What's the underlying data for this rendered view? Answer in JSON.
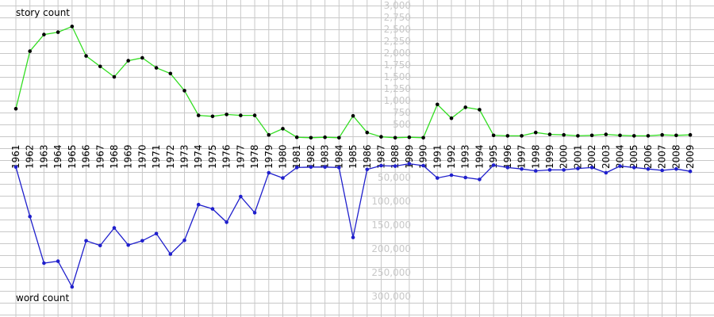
{
  "chart_data": [
    {
      "type": "line",
      "title": "",
      "ylabel": "story count",
      "ylim": [
        0,
        3250
      ],
      "yticks": [
        "3,250",
        "3,000",
        "2,750",
        "2,500",
        "2,250",
        "2,000",
        "1,750",
        "1,500",
        "1,250",
        "1,000",
        "750",
        "500"
      ],
      "x": [
        "1961",
        "1962",
        "1963",
        "1964",
        "1965",
        "1966",
        "1967",
        "1968",
        "1969",
        "1970",
        "1971",
        "1972",
        "1973",
        "1974",
        "1975",
        "1976",
        "1977",
        "1978",
        "1979",
        "1980",
        "1981",
        "1982",
        "1983",
        "1984",
        "1985",
        "1986",
        "1987",
        "1988",
        "1989",
        "1990",
        "1991",
        "1992",
        "1993",
        "1994",
        "1995",
        "1996",
        "1997",
        "1998",
        "1999",
        "2000",
        "2001",
        "2002",
        "2003",
        "2004",
        "2005",
        "2006",
        "2007",
        "2008",
        "2009"
      ],
      "values": [
        830,
        2040,
        2390,
        2440,
        2560,
        1940,
        1720,
        1500,
        1840,
        1900,
        1690,
        1570,
        1210,
        690,
        670,
        710,
        690,
        690,
        280,
        410,
        230,
        220,
        230,
        220,
        680,
        330,
        240,
        220,
        230,
        220,
        920,
        630,
        860,
        810,
        270,
        260,
        260,
        330,
        290,
        280,
        260,
        270,
        290,
        270,
        260,
        260,
        280,
        270,
        280
      ],
      "grid": true,
      "colors": {
        "line": "#33dd22",
        "marker": "#000000",
        "grid": "#c8c8c8"
      }
    },
    {
      "type": "line",
      "title": "",
      "ylabel": "word count",
      "ylim": [
        0,
        300000
      ],
      "yticks": [
        "50,000",
        "100,000",
        "150,000",
        "200,000",
        "250,000",
        "300,000"
      ],
      "x": [
        "1961",
        "1962",
        "1963",
        "1964",
        "1965",
        "1966",
        "1967",
        "1968",
        "1969",
        "1970",
        "1971",
        "1972",
        "1973",
        "1974",
        "1975",
        "1976",
        "1977",
        "1978",
        "1979",
        "1980",
        "1981",
        "1982",
        "1983",
        "1984",
        "1985",
        "1986",
        "1987",
        "1988",
        "1989",
        "1990",
        "1991",
        "1992",
        "1993",
        "1994",
        "1995",
        "1996",
        "1997",
        "1998",
        "1999",
        "2000",
        "2001",
        "2002",
        "2003",
        "2004",
        "2005",
        "2006",
        "2007",
        "2008",
        "2009"
      ],
      "values": [
        28000,
        132000,
        230000,
        226000,
        280000,
        183000,
        193000,
        156000,
        192000,
        183000,
        168000,
        211000,
        182000,
        107000,
        116000,
        144000,
        90000,
        124000,
        40000,
        51000,
        29000,
        28000,
        28000,
        29000,
        176000,
        33000,
        25000,
        26000,
        21000,
        25000,
        51000,
        45000,
        50000,
        54000,
        24000,
        29000,
        32000,
        36000,
        34000,
        34000,
        31000,
        29000,
        40000,
        26000,
        29000,
        32000,
        35000,
        32000,
        37000
      ],
      "grid": true,
      "colors": {
        "line": "#1f1fcc",
        "marker": "#1f1fcc",
        "grid": "#c8c8c8"
      }
    }
  ]
}
